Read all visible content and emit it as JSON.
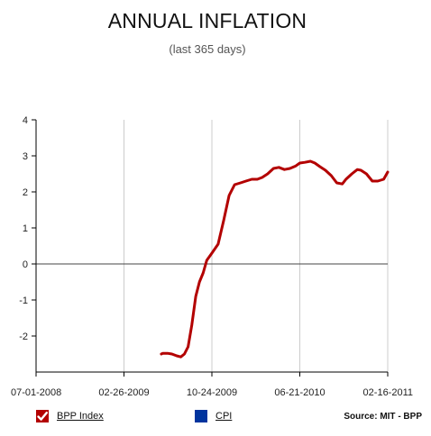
{
  "header": {
    "title": "ANNUAL INFLATION",
    "subtitle": "(last 365 days)"
  },
  "legend": {
    "items": [
      {
        "label": "BPP Index",
        "color": "#b30000",
        "checked": true
      },
      {
        "label": "CPI",
        "color": "#00349e",
        "checked": false
      }
    ]
  },
  "source": "Source: MIT - BPP",
  "chart_data": {
    "type": "line",
    "title": "ANNUAL INFLATION",
    "subtitle": "(last 365 days)",
    "xlabel": "",
    "ylabel": "",
    "ylim": [
      -3,
      4
    ],
    "xlim": [
      "2008-07-01",
      "2011-02-16"
    ],
    "x_ticks": [
      "07-01-2008",
      "02-26-2009",
      "10-24-2009",
      "06-21-2010",
      "02-16-2011"
    ],
    "y_ticks": [
      4,
      3,
      2,
      1,
      0,
      -1,
      -2
    ],
    "zero_line": true,
    "grid": "vertical",
    "series": [
      {
        "name": "BPP Index",
        "color": "#b30000",
        "x": [
          "2009-06-08",
          "2009-06-12",
          "2009-06-25",
          "2009-07-07",
          "2009-07-20",
          "2009-07-31",
          "2009-08-10",
          "2009-08-20",
          "2009-08-30",
          "2009-09-10",
          "2009-09-20",
          "2009-09-30",
          "2009-10-10",
          "2009-10-24",
          "2009-11-10",
          "2009-11-25",
          "2009-12-10",
          "2009-12-25",
          "2010-01-10",
          "2010-01-25",
          "2010-02-10",
          "2010-02-25",
          "2010-03-10",
          "2010-03-25",
          "2010-04-10",
          "2010-04-25",
          "2010-05-10",
          "2010-05-25",
          "2010-06-10",
          "2010-06-21",
          "2010-07-05",
          "2010-07-20",
          "2010-08-01",
          "2010-08-15",
          "2010-08-30",
          "2010-09-15",
          "2010-09-30",
          "2010-10-15",
          "2010-10-25",
          "2010-11-10",
          "2010-11-25",
          "2010-12-05",
          "2010-12-20",
          "2011-01-05",
          "2011-01-20",
          "2011-02-05",
          "2011-02-16"
        ],
        "values": [
          -2.5,
          -2.48,
          -2.48,
          -2.5,
          -2.55,
          -2.58,
          -2.5,
          -2.3,
          -1.7,
          -0.9,
          -0.5,
          -0.25,
          0.1,
          0.3,
          0.55,
          1.2,
          1.9,
          2.2,
          2.25,
          2.3,
          2.35,
          2.35,
          2.4,
          2.5,
          2.65,
          2.68,
          2.62,
          2.65,
          2.72,
          2.8,
          2.82,
          2.85,
          2.8,
          2.7,
          2.6,
          2.45,
          2.25,
          2.22,
          2.35,
          2.5,
          2.62,
          2.6,
          2.5,
          2.3,
          2.3,
          2.35,
          2.55
        ]
      }
    ]
  }
}
